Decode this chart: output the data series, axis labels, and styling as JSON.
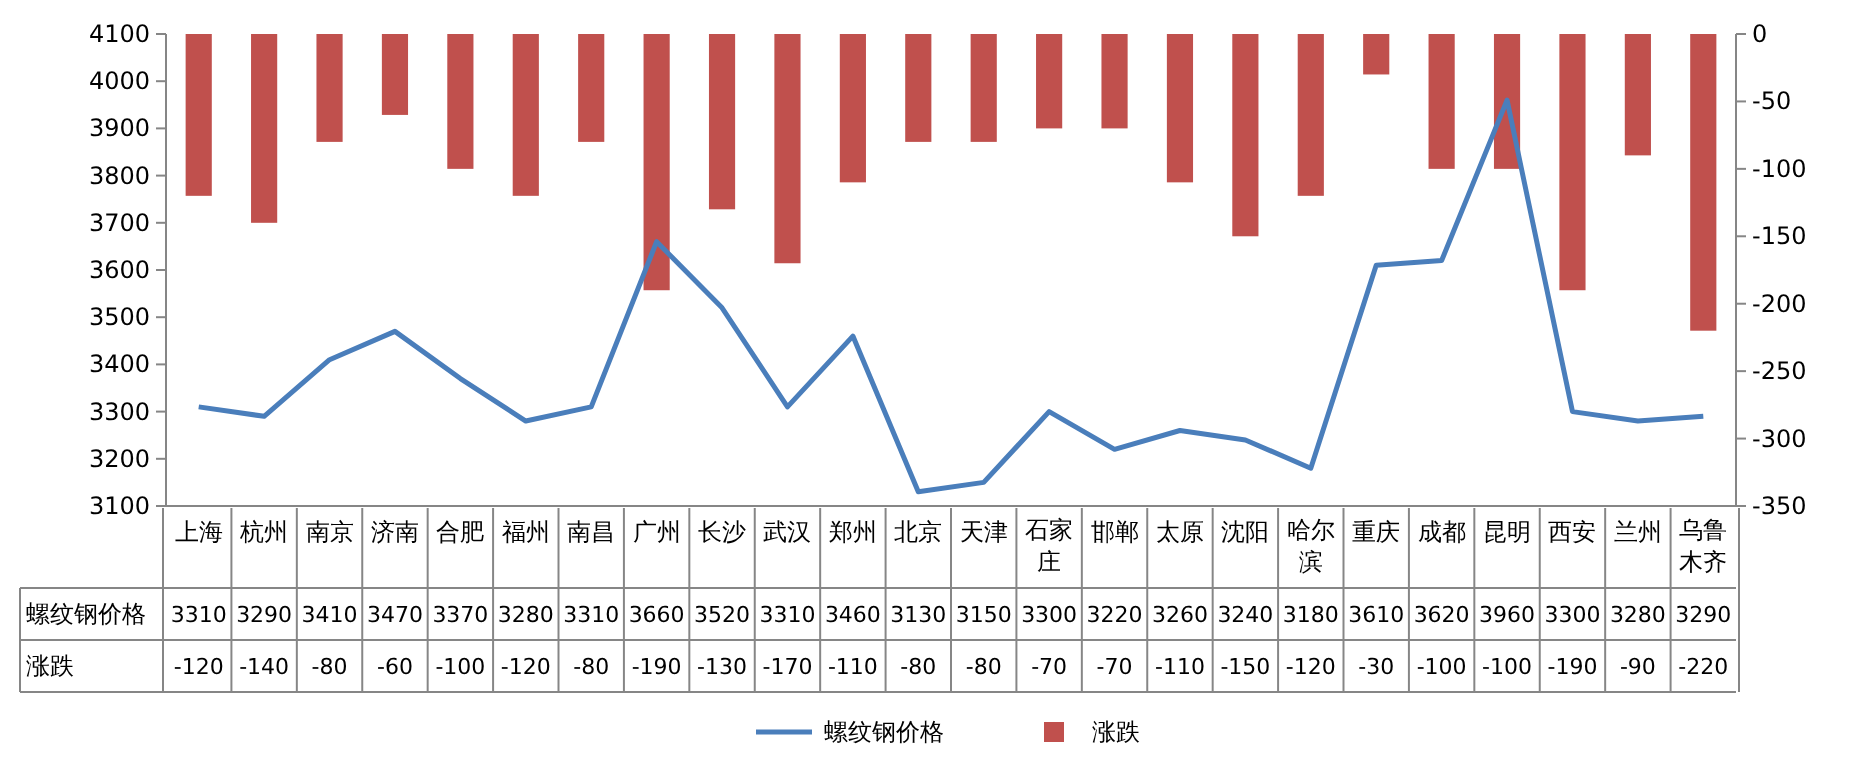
{
  "chart_data": {
    "type": "bar",
    "categories": [
      "上海",
      "杭州",
      "南京",
      "济南",
      "合肥",
      "福州",
      "南昌",
      "广州",
      "长沙",
      "武汉",
      "郑州",
      "北京",
      "天津",
      "石家庄",
      "邯郸",
      "太原",
      "沈阳",
      "哈尔滨",
      "重庆",
      "成都",
      "昆明",
      "西安",
      "兰州",
      "乌鲁木齐"
    ],
    "series": [
      {
        "name": "螺纹钢价格",
        "type": "line",
        "axis": "y",
        "color": "#4a7ebb",
        "values": [
          3310,
          3290,
          3410,
          3470,
          3370,
          3280,
          3310,
          3660,
          3520,
          3310,
          3460,
          3130,
          3150,
          3300,
          3220,
          3260,
          3240,
          3180,
          3610,
          3620,
          3960,
          3300,
          3280,
          3290
        ]
      },
      {
        "name": "涨跌",
        "type": "bar",
        "axis": "y2",
        "color": "#c0504d",
        "values": [
          -120,
          -140,
          -80,
          -60,
          -100,
          -120,
          -80,
          -190,
          -130,
          -170,
          -110,
          -80,
          -80,
          -70,
          -70,
          -110,
          -150,
          -120,
          -30,
          -100,
          -100,
          -190,
          -90,
          -220
        ]
      }
    ],
    "ylim": [
      3100,
      4100
    ],
    "yticks": [
      3100,
      3200,
      3300,
      3400,
      3500,
      3600,
      3700,
      3800,
      3900,
      4000,
      4100
    ],
    "y2lim": [
      -350,
      0
    ],
    "y2ticks": [
      -350,
      -300,
      -250,
      -200,
      -150,
      -100,
      -50,
      0
    ],
    "data_labels": true,
    "legend": "bottom"
  }
}
